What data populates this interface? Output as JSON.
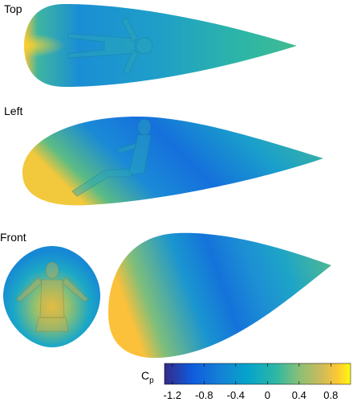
{
  "views": [
    {
      "label": "Top"
    },
    {
      "label": "Left"
    },
    {
      "label": "Front"
    }
  ],
  "colorbar": {
    "label": "C",
    "subscript": "p",
    "lim": [
      -1.3,
      1.05
    ],
    "ticks": [
      -1.2,
      -0.8,
      -0.4,
      0,
      0.4,
      0.8
    ]
  }
}
